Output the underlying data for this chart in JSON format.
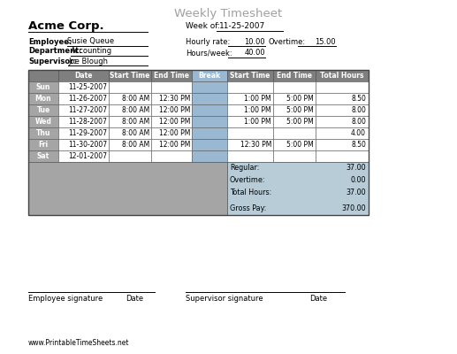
{
  "title": "Weekly Timesheet",
  "company": "Acme Corp.",
  "week_of_label": "Week of:",
  "week_of_value": "11-25-2007",
  "employee_label": "Employee:",
  "employee_value": "Susie Queue",
  "department_label": "Department:",
  "department_value": "Accounting",
  "supervisor_label": "Supervisor:",
  "supervisor_value": "Joe Blough",
  "hourly_rate_label": "Hourly rate:",
  "hourly_rate_value": "10.00",
  "overtime_label": "Overtime:",
  "overtime_value": "15.00",
  "hours_week_label": "Hours/week:",
  "hours_week_value": "40.00",
  "days": [
    "Sun",
    "Mon",
    "Tue",
    "Wed",
    "Thu",
    "Fri",
    "Sat"
  ],
  "dates": [
    "11-25-2007",
    "11-26-2007",
    "11-27-2007",
    "11-28-2007",
    "11-29-2007",
    "11-30-2007",
    "12-01-2007"
  ],
  "start1": [
    "",
    "8:00 AM",
    "8:00 AM",
    "8:00 AM",
    "8:00 AM",
    "8:00 AM",
    ""
  ],
  "end1": [
    "",
    "12:30 PM",
    "12:00 PM",
    "12:00 PM",
    "12:00 PM",
    "12:00 PM",
    ""
  ],
  "start2": [
    "",
    "1:00 PM",
    "1:00 PM",
    "1:00 PM",
    "",
    "12:30 PM",
    ""
  ],
  "end2": [
    "",
    "5:00 PM",
    "5:00 PM",
    "5:00 PM",
    "",
    "5:00 PM",
    ""
  ],
  "total_hours": [
    "",
    "8.50",
    "8.00",
    "8.00",
    "4.00",
    "8.50",
    ""
  ],
  "regular_label": "Regular:",
  "regular_value": "37.00",
  "overtime2_label": "Overtime:",
  "overtime2_value": "0.00",
  "total_hours_label": "Total Hours:",
  "total_hours_value": "37.00",
  "gross_pay_label": "Gross Pay:",
  "gross_pay_value": "370.00",
  "sig_employee_label": "Employee signature",
  "sig_date_label1": "Date",
  "sig_supervisor_label": "Supervisor signature",
  "sig_date_label2": "Date",
  "website": "www.PrintableTimeSheets.net",
  "bg_color": "#ffffff",
  "header_bg": "#7f7f7f",
  "row_day_bg": "#a5a5a5",
  "row_data_bg": "#ffffff",
  "break_col_bg": "#9bb8d3",
  "summary_left_bg": "#a5a5a5",
  "summary_right_bg": "#b8ccd8",
  "title_color": "#a0a0a0",
  "border_color": "#555555"
}
